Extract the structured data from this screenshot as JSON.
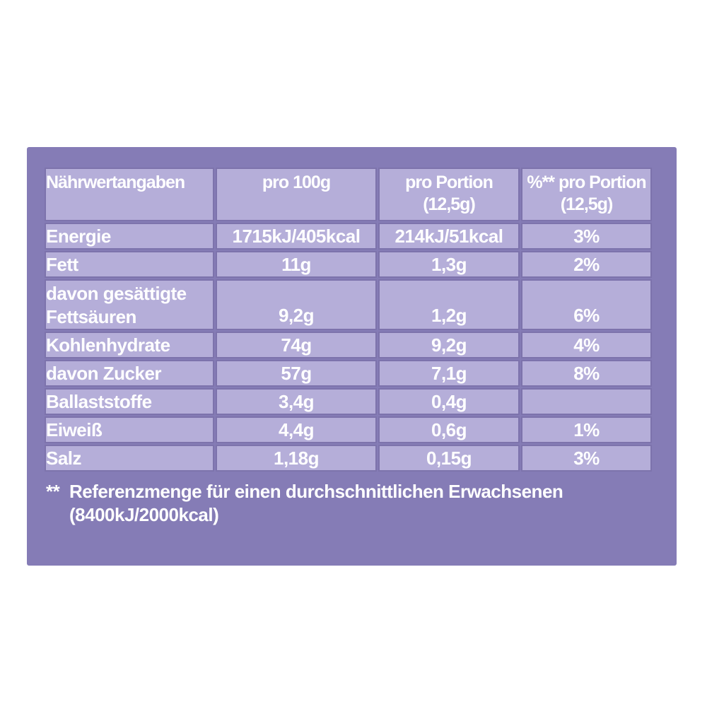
{
  "theme": {
    "page-bg": "#ffffff",
    "panel-bg": "#857CB6",
    "cell-bg": "#B5AED9",
    "cell-border": "#7D73AC",
    "text-color": "#ffffff"
  },
  "table": {
    "header": {
      "col1": "Nährwertangaben",
      "col2": "pro 100g",
      "col3_line1": "pro Portion",
      "col3_line2": "(12,5g)",
      "col4_line1": "%** pro Portion",
      "col4_line2": "(12,5g)"
    },
    "rows": [
      {
        "label": "Energie",
        "per_100g": "1715kJ/405kcal",
        "per_portion": "214kJ/51kcal",
        "percent": "3%"
      },
      {
        "label": "Fett",
        "per_100g": "11g",
        "per_portion": "1,3g",
        "percent": "2%"
      },
      {
        "label": "davon gesättigte Fettsäuren",
        "per_100g": "9,2g",
        "per_portion": "1,2g",
        "percent": "6%"
      },
      {
        "label": "Kohlenhydrate",
        "per_100g": "74g",
        "per_portion": "9,2g",
        "percent": "4%"
      },
      {
        "label": "davon Zucker",
        "per_100g": "57g",
        "per_portion": "7,1g",
        "percent": "8%"
      },
      {
        "label": "Ballaststoffe",
        "per_100g": "3,4g",
        "per_portion": "0,4g",
        "percent": ""
      },
      {
        "label": "Eiweiß",
        "per_100g": "4,4g",
        "per_portion": "0,6g",
        "percent": "1%"
      },
      {
        "label": "Salz",
        "per_100g": "1,18g",
        "per_portion": "0,15g",
        "percent": "3%"
      }
    ]
  },
  "footnote": {
    "marker": "**",
    "line1": "Referenzmenge für einen durchschnittlichen Erwachsenen",
    "line2": "(8400kJ/2000kcal)"
  }
}
